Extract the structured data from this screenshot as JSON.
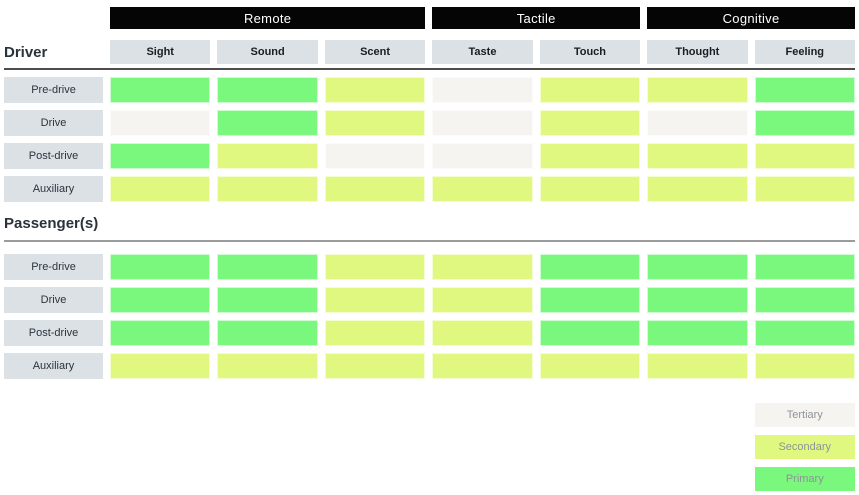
{
  "chart_data": {
    "type": "heatmap",
    "title": "",
    "column_groups": [
      {
        "label": "Remote",
        "span": 3
      },
      {
        "label": "Tactile",
        "span": 2
      },
      {
        "label": "Cognitive",
        "span": 2
      }
    ],
    "columns": [
      "Sight",
      "Sound",
      "Scent",
      "Taste",
      "Touch",
      "Thought",
      "Feeling"
    ],
    "sections": [
      {
        "title": "Driver",
        "rows": [
          {
            "label": "Pre-drive",
            "values": [
              "primary",
              "primary",
              "secondary",
              "tertiary",
              "secondary",
              "secondary",
              "primary"
            ]
          },
          {
            "label": "Drive",
            "values": [
              "tertiary",
              "primary",
              "secondary",
              "tertiary",
              "secondary",
              "tertiary",
              "primary"
            ]
          },
          {
            "label": "Post-drive",
            "values": [
              "primary",
              "secondary",
              "tertiary",
              "tertiary",
              "secondary",
              "secondary",
              "secondary"
            ]
          },
          {
            "label": "Auxiliary",
            "values": [
              "secondary",
              "secondary",
              "secondary",
              "secondary",
              "secondary",
              "secondary",
              "secondary"
            ]
          }
        ]
      },
      {
        "title": "Passenger(s)",
        "rows": [
          {
            "label": "Pre-drive",
            "values": [
              "primary",
              "primary",
              "secondary",
              "secondary",
              "primary",
              "primary",
              "primary"
            ]
          },
          {
            "label": "Drive",
            "values": [
              "primary",
              "primary",
              "secondary",
              "secondary",
              "primary",
              "primary",
              "primary"
            ]
          },
          {
            "label": "Post-drive",
            "values": [
              "primary",
              "primary",
              "secondary",
              "secondary",
              "primary",
              "primary",
              "primary"
            ]
          },
          {
            "label": "Auxiliary",
            "values": [
              "secondary",
              "secondary",
              "secondary",
              "secondary",
              "secondary",
              "secondary",
              "secondary"
            ]
          }
        ]
      }
    ],
    "legend": [
      {
        "label": "Tertiary",
        "level": "tertiary"
      },
      {
        "label": "Secondary",
        "level": "secondary"
      },
      {
        "label": "Primary",
        "level": "primary"
      }
    ],
    "legend_position": "bottom-right",
    "level_colors": {
      "primary": "#7af77d",
      "secondary": "#e0f87f",
      "tertiary": "#f5f4f0"
    },
    "ui_colors": {
      "group_header_bg": "#050505",
      "group_header_text": "#ffffff",
      "label_box_bg": "#dce1e5",
      "driver_divider": "#4d4d4d",
      "passenger_divider": "#9b9b9b"
    }
  }
}
